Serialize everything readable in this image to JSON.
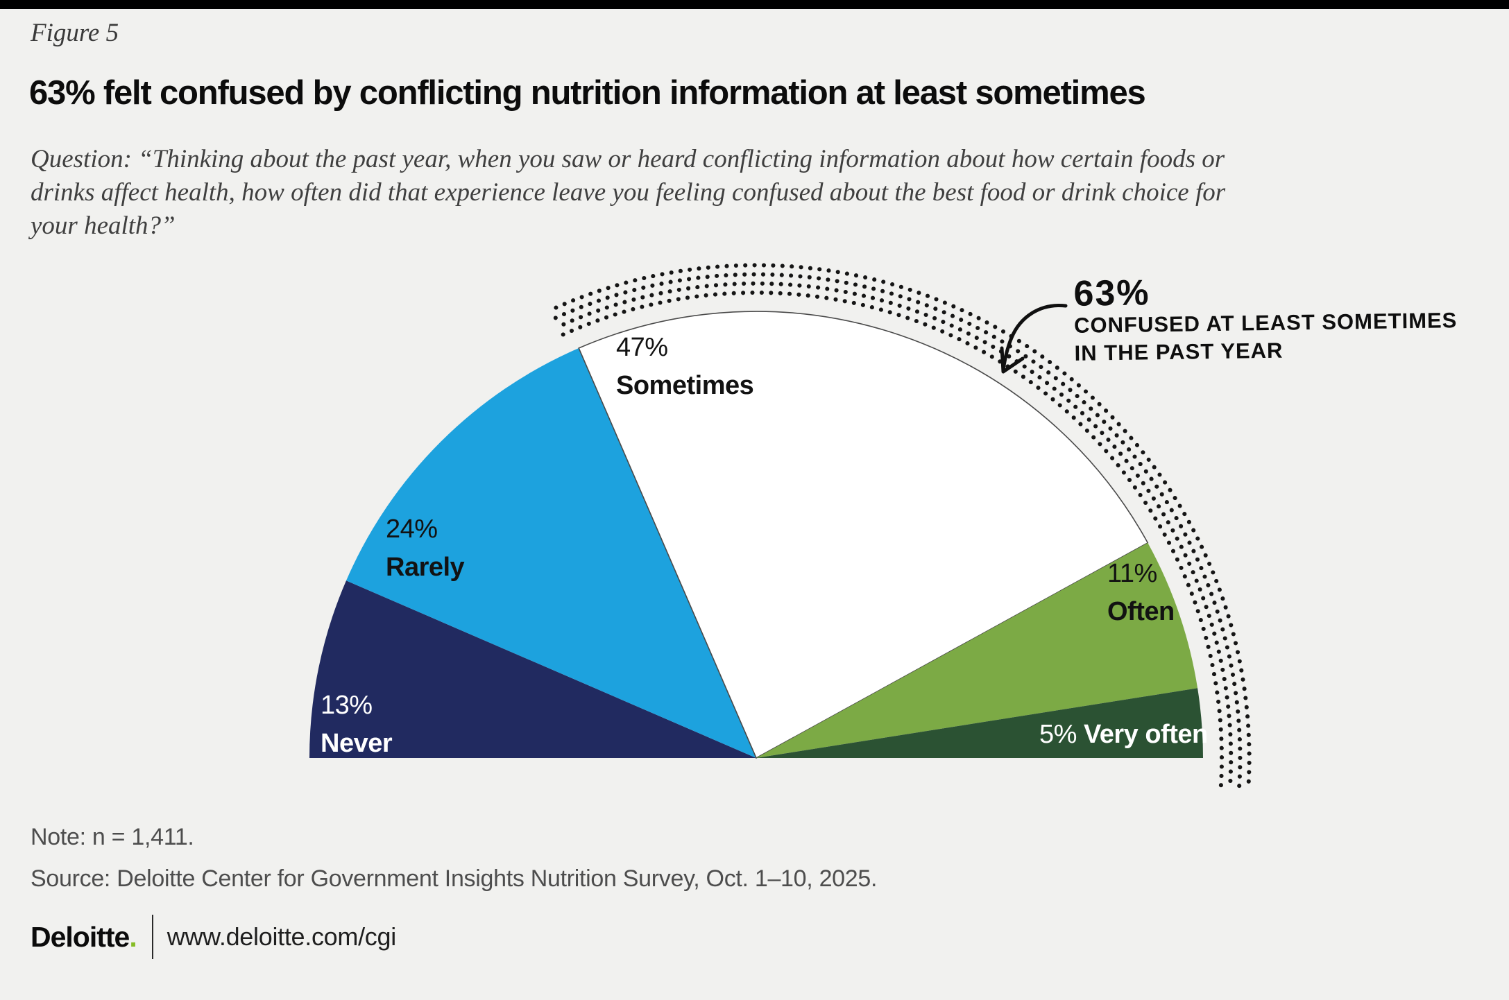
{
  "figure_label": "Figure 5",
  "title": "63% felt confused by conflicting nutrition information at least sometimes",
  "question": {
    "lines": [
      "Question: “Thinking about the past year, when you saw or heard conflicting information about how certain foods or",
      "drinks affect health, how often did that experience leave you feeling confused about the best food or drink choice for",
      "your health?”"
    ]
  },
  "chart_data": {
    "type": "pie",
    "subtype": "semicircle-gauge",
    "unit": "percent",
    "total": 100,
    "categories": [
      "Never",
      "Rarely",
      "Sometimes",
      "Often",
      "Very often"
    ],
    "values": [
      13,
      24,
      47,
      11,
      5
    ],
    "segments": [
      {
        "label": "Never",
        "value": 13,
        "color": "#212a60",
        "text_color": "#ffffff"
      },
      {
        "label": "Rarely",
        "value": 24,
        "color": "#1da2de",
        "text_color": "#121212"
      },
      {
        "label": "Sometimes",
        "value": 47,
        "color": "#ffffff",
        "text_color": "#121212",
        "outline": "#4a4a4a"
      },
      {
        "label": "Often",
        "value": 11,
        "color": "#7caa45",
        "text_color": "#121212"
      },
      {
        "label": "Very often",
        "value": 5,
        "color": "#2b5233",
        "text_color": "#ffffff"
      }
    ],
    "annotation": {
      "value": "63%",
      "lines": [
        "CONFUSED AT LEAST SOMETIMES",
        "IN THE PAST YEAR"
      ],
      "covers": [
        "Sometimes",
        "Often",
        "Very often"
      ],
      "marker": "dotted-arc"
    },
    "legend_position": "none",
    "grid": false,
    "dot_color": "#151515"
  },
  "note": "Note: n = 1,411.",
  "source": "Source: Deloitte Center for Government Insights Nutrition Survey, Oct. 1–10, 2025.",
  "footer": {
    "brand": "Deloitte",
    "brand_dot": ".",
    "brand_dot_color": "#86bc25",
    "url": "www.deloitte.com/cgi"
  }
}
